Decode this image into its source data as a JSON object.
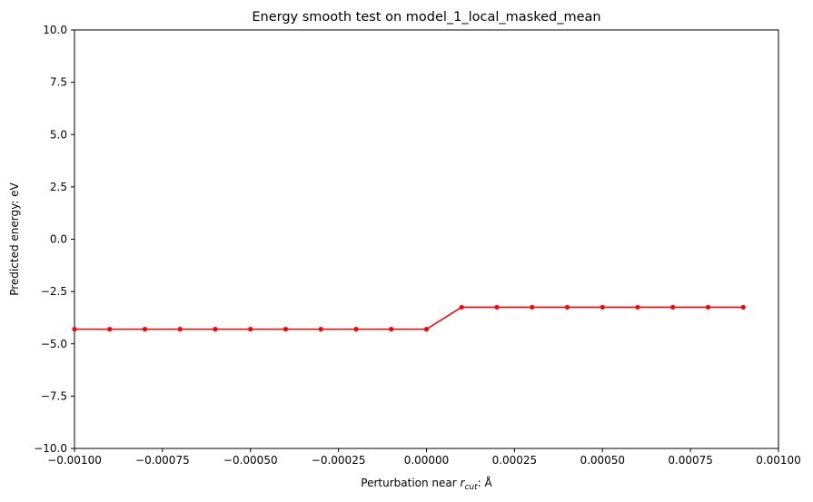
{
  "chart_data": {
    "type": "line",
    "title": "Energy smooth test on model_1_local_masked_mean",
    "xlabel_prefix": "Perturbation near ",
    "xlabel_var": "r",
    "xlabel_sub": "cut",
    "xlabel_suffix": ": Å",
    "ylabel": "Predicted energy: eV",
    "xlim": [
      -0.001,
      0.001
    ],
    "ylim": [
      -10,
      10
    ],
    "grid": false,
    "x_ticks": [
      -0.001,
      -0.00075,
      -0.0005,
      -0.00025,
      0,
      0.00025,
      0.0005,
      0.00075,
      0.001
    ],
    "x_tick_labels": [
      "−0.00100",
      "−0.00075",
      "−0.00050",
      "−0.00025",
      "0.00000",
      "0.00025",
      "0.00050",
      "0.00075",
      "0.00100"
    ],
    "y_ticks": [
      -10,
      -7.5,
      -5,
      -2.5,
      0,
      2.5,
      5,
      7.5,
      10
    ],
    "y_tick_labels": [
      "−10.0",
      "−7.5",
      "−5.0",
      "−2.5",
      "0.0",
      "2.5",
      "5.0",
      "7.5",
      "10.0"
    ],
    "series": [
      {
        "color": "#ff0000",
        "marker": "circle",
        "x": [
          -0.001,
          -0.0009,
          -0.0008,
          -0.0007,
          -0.0006,
          -0.0005,
          -0.0004,
          -0.0003,
          -0.0002,
          -0.0001,
          0.0,
          0.0001,
          0.0002,
          0.0003,
          0.0004,
          0.0005,
          0.0006,
          0.0007,
          0.0008,
          0.0009
        ],
        "y": [
          -4.3,
          -4.3,
          -4.3,
          -4.3,
          -4.3,
          -4.3,
          -4.3,
          -4.3,
          -4.3,
          -4.3,
          -4.3,
          -3.25,
          -3.25,
          -3.25,
          -3.25,
          -3.25,
          -3.25,
          -3.25,
          -3.25,
          -3.25
        ]
      }
    ]
  }
}
